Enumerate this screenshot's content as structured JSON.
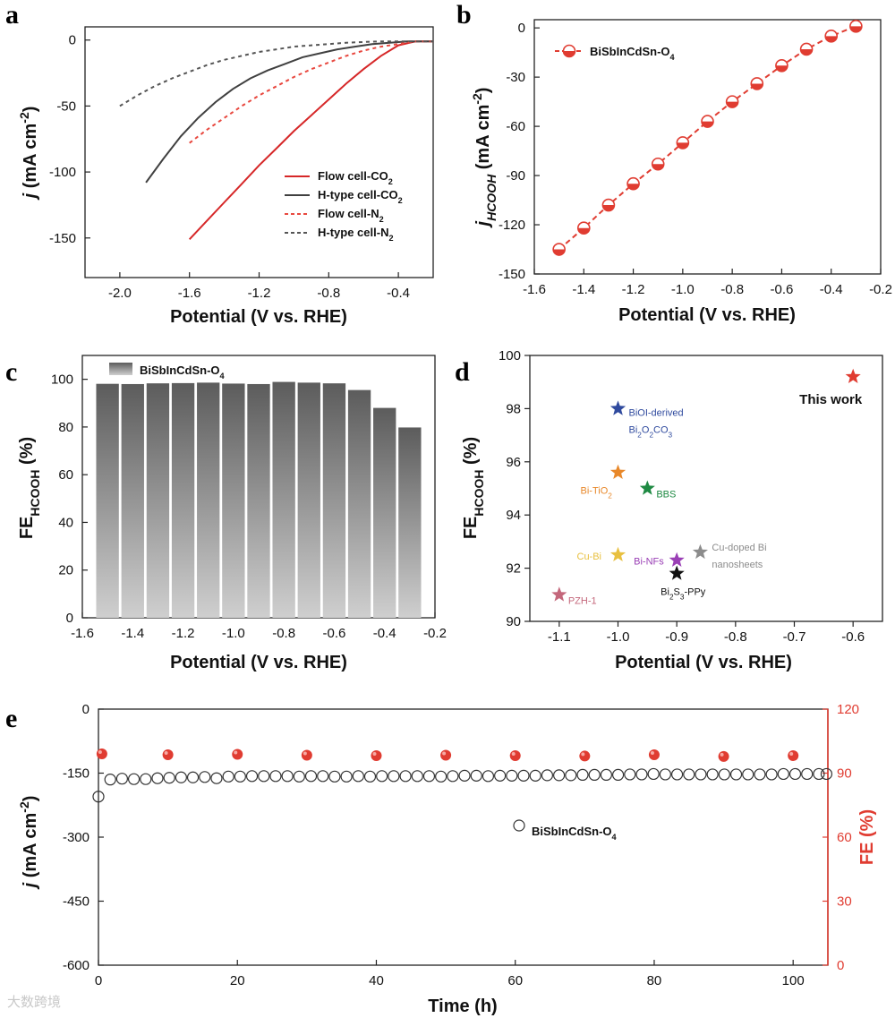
{
  "panel_letters": [
    "a",
    "b",
    "c",
    "d",
    "e"
  ],
  "watermark": "大数跨境",
  "chart_data": [
    {
      "panel": "a",
      "type": "line",
      "xlabel": "Potential  (V  vs. RHE)",
      "ylabel_main": "j",
      "ylabel_rest": "(mA cm",
      "ylabel_sup": "-2",
      "xlim": [
        -2.2,
        -0.2
      ],
      "ylim": [
        -180,
        10
      ],
      "xticks": [
        -2.0,
        -1.6,
        -1.2,
        -0.8,
        -0.4
      ],
      "yticks": [
        0,
        -50,
        -100,
        -150
      ],
      "series": [
        {
          "name": "Flow cell-CO",
          "sub": "2",
          "color": "#d62728",
          "dash": false,
          "x": [
            -1.6,
            -1.5,
            -1.4,
            -1.3,
            -1.2,
            -1.1,
            -1.0,
            -0.9,
            -0.8,
            -0.7,
            -0.6,
            -0.5,
            -0.4,
            -0.3,
            -0.2
          ],
          "y": [
            -151,
            -137,
            -123,
            -109,
            -95,
            -82,
            -69,
            -57,
            -45,
            -33,
            -22,
            -12,
            -4,
            -1,
            -1
          ]
        },
        {
          "name": "H-type cell-CO",
          "sub": "2",
          "color": "#404040",
          "dash": false,
          "x": [
            -1.85,
            -1.75,
            -1.65,
            -1.55,
            -1.45,
            -1.35,
            -1.25,
            -1.15,
            -1.05,
            -0.95,
            -0.85,
            -0.75,
            -0.65,
            -0.55,
            -0.45,
            -0.35,
            -0.2
          ],
          "y": [
            -108,
            -90,
            -73,
            -59,
            -47,
            -37,
            -29,
            -23,
            -18,
            -13,
            -10,
            -7,
            -5,
            -3,
            -2,
            -1,
            -1
          ]
        },
        {
          "name": "Flow cell-N",
          "sub": "2",
          "color": "#e8483f",
          "dash": true,
          "x": [
            -1.6,
            -1.5,
            -1.4,
            -1.3,
            -1.2,
            -1.1,
            -1.0,
            -0.9,
            -0.8,
            -0.7,
            -0.6,
            -0.5,
            -0.4,
            -0.3,
            -0.2
          ],
          "y": [
            -78,
            -68,
            -59,
            -50,
            -42,
            -35,
            -28,
            -22,
            -17,
            -12,
            -8,
            -5,
            -3,
            -1,
            -1
          ]
        },
        {
          "name": "H-type cell-N",
          "sub": "2",
          "color": "#555555",
          "dash": true,
          "x": [
            -2.0,
            -1.9,
            -1.8,
            -1.7,
            -1.6,
            -1.5,
            -1.4,
            -1.3,
            -1.2,
            -1.1,
            -1.0,
            -0.9,
            -0.8,
            -0.7,
            -0.6,
            -0.5,
            -0.4,
            -0.3,
            -0.2
          ],
          "y": [
            -50,
            -42,
            -35,
            -29,
            -24,
            -19,
            -15,
            -12,
            -9,
            -7,
            -5,
            -4,
            -3,
            -2,
            -1.5,
            -1,
            -1,
            -1,
            -1
          ]
        }
      ]
    },
    {
      "panel": "b",
      "type": "line",
      "xlabel": "Potential  (V  vs. RHE)",
      "ylabel_main": "j",
      "ylabel_sub": "HCOOH",
      "ylabel_rest": "(mA cm",
      "ylabel_sup": "-2",
      "xlim": [
        -1.6,
        -0.2
      ],
      "ylim": [
        -150,
        5
      ],
      "xticks": [
        -1.6,
        -1.4,
        -1.2,
        -1.0,
        -0.8,
        -0.6,
        -0.4,
        -0.2
      ],
      "yticks": [
        0,
        -30,
        -60,
        -90,
        -120,
        -150
      ],
      "series": [
        {
          "name": "BiSbInCdSn-O",
          "sub": "4",
          "color": "#e03c31",
          "x": [
            -1.5,
            -1.4,
            -1.3,
            -1.2,
            -1.1,
            -1.0,
            -0.9,
            -0.8,
            -0.7,
            -0.6,
            -0.5,
            -0.4,
            -0.3
          ],
          "y": [
            -135,
            -122,
            -108,
            -95,
            -83,
            -70,
            -57,
            -45,
            -34,
            -23,
            -13,
            -5,
            1
          ]
        }
      ]
    },
    {
      "panel": "c",
      "type": "bar",
      "xlabel": "Potential (V vs. RHE)",
      "ylabel_main": "FE",
      "ylabel_sub": "HCOOH",
      "ylabel_rest": "(%)",
      "xlim": [
        -1.6,
        -0.2
      ],
      "ylim": [
        0,
        110
      ],
      "xticks": [
        -1.6,
        -1.4,
        -1.2,
        -1.0,
        -0.8,
        -0.6,
        -0.4,
        -0.2
      ],
      "yticks": [
        0,
        20,
        40,
        60,
        80,
        100
      ],
      "legend": "BiSbInCdSn-O",
      "legend_sub": "4",
      "x": [
        -1.5,
        -1.4,
        -1.3,
        -1.2,
        -1.1,
        -1.0,
        -0.9,
        -0.8,
        -0.7,
        -0.6,
        -0.5,
        -0.4,
        -0.3
      ],
      "values": [
        98.1,
        98.0,
        98.3,
        98.4,
        98.6,
        98.2,
        98.0,
        98.9,
        98.6,
        98.3,
        95.5,
        88.0,
        79.8
      ]
    },
    {
      "panel": "d",
      "type": "scatter",
      "xlabel": "Potential  (V  vs. RHE)",
      "ylabel_main": "FE",
      "ylabel_sub": "HCOOH",
      "ylabel_rest": "(%)",
      "xlim": [
        -1.15,
        -0.55
      ],
      "ylim": [
        90,
        100
      ],
      "xticks": [
        -1.1,
        -1.0,
        -0.9,
        -0.8,
        -0.7,
        -0.6
      ],
      "yticks": [
        90,
        92,
        94,
        96,
        98,
        100
      ],
      "points": [
        {
          "x": -0.6,
          "y": 99.2,
          "color": "#e03c31",
          "label": "This work",
          "label_sub": "",
          "label2": ""
        },
        {
          "x": -1.0,
          "y": 98.0,
          "color": "#2f4a9e",
          "label": "BiOI-derived",
          "label_sub": "",
          "label2": "Bi2O2CO3"
        },
        {
          "x": -1.0,
          "y": 95.6,
          "color": "#e8882a",
          "label": "Bi-TiO",
          "label_sub": "2",
          "label2": ""
        },
        {
          "x": -0.95,
          "y": 95.0,
          "color": "#1f8a43",
          "label": "BBS",
          "label_sub": "",
          "label2": ""
        },
        {
          "x": -0.86,
          "y": 92.6,
          "color": "#8c8c8c",
          "label": "Cu-doped Bi",
          "label_sub": "",
          "label2": "nanosheets"
        },
        {
          "x": -1.0,
          "y": 92.5,
          "color": "#e8c040",
          "label": "Cu-Bi",
          "label_sub": "",
          "label2": ""
        },
        {
          "x": -0.9,
          "y": 92.3,
          "color": "#9a3fb5",
          "label": "Bi-NFs",
          "label_sub": "",
          "label2": ""
        },
        {
          "x": -0.9,
          "y": 91.8,
          "color": "#111111",
          "label": "Bi2S3-PPy",
          "label_sub": "",
          "label2": ""
        },
        {
          "x": -1.1,
          "y": 91.0,
          "color": "#c4677b",
          "label": "PZH-1",
          "label_sub": "",
          "label2": ""
        }
      ]
    },
    {
      "panel": "e",
      "type": "scatter",
      "xlabel": "Time (h)",
      "ylabel_left_main": "j",
      "ylabel_left_rest": "(mA cm",
      "ylabel_left_sup": "-2",
      "ylabel_right": "FE (%)",
      "xlim": [
        0,
        105
      ],
      "ylim_left": [
        -600,
        0
      ],
      "ylim_right": [
        0,
        120
      ],
      "xticks": [
        0,
        20,
        40,
        60,
        80,
        100
      ],
      "yticks_left": [
        0,
        -150,
        -300,
        -450,
        -600
      ],
      "yticks_right": [
        0,
        30,
        60,
        90,
        120
      ],
      "legend": "BiSbInCdSn-O",
      "legend_sub": "4",
      "current_x": [
        0,
        1.7,
        3.4,
        5.1,
        6.8,
        8.5,
        10.2,
        11.9,
        13.6,
        15.3,
        17.0,
        18.7,
        20.4,
        22.1,
        23.8,
        25.5,
        27.2,
        28.9,
        30.6,
        32.3,
        34.0,
        35.7,
        37.4,
        39.1,
        40.8,
        42.5,
        44.2,
        45.9,
        47.6,
        49.3,
        51.0,
        52.7,
        54.4,
        56.1,
        57.8,
        59.5,
        61.2,
        62.9,
        64.6,
        66.3,
        68.0,
        69.7,
        71.4,
        73.1,
        74.8,
        76.5,
        78.2,
        79.9,
        81.6,
        83.3,
        85.0,
        86.7,
        88.4,
        90.1,
        91.8,
        93.5,
        95.2,
        96.9,
        98.6,
        100.3,
        102.0,
        103.7,
        104.8
      ],
      "current_y": [
        -205,
        -165,
        -163,
        -164,
        -164,
        -162,
        -161,
        -160,
        -160,
        -159,
        -162,
        -158,
        -158,
        -157,
        -157,
        -157,
        -157,
        -158,
        -157,
        -157,
        -158,
        -158,
        -157,
        -158,
        -157,
        -157,
        -157,
        -157,
        -157,
        -158,
        -157,
        -156,
        -156,
        -157,
        -156,
        -156,
        -156,
        -156,
        -155,
        -155,
        -155,
        -154,
        -154,
        -154,
        -154,
        -153,
        -153,
        -152,
        -153,
        -153,
        -153,
        -153,
        -153,
        -153,
        -153,
        -153,
        -153,
        -153,
        -152,
        -152,
        -152,
        -152,
        -152
      ],
      "fe_x": [
        0.5,
        10,
        20,
        30,
        40,
        50,
        60,
        70,
        80,
        90,
        100
      ],
      "fe_y": [
        99.0,
        98.6,
        98.8,
        98.4,
        98.2,
        98.4,
        98.2,
        98.0,
        98.6,
        97.8,
        98.2
      ]
    }
  ]
}
